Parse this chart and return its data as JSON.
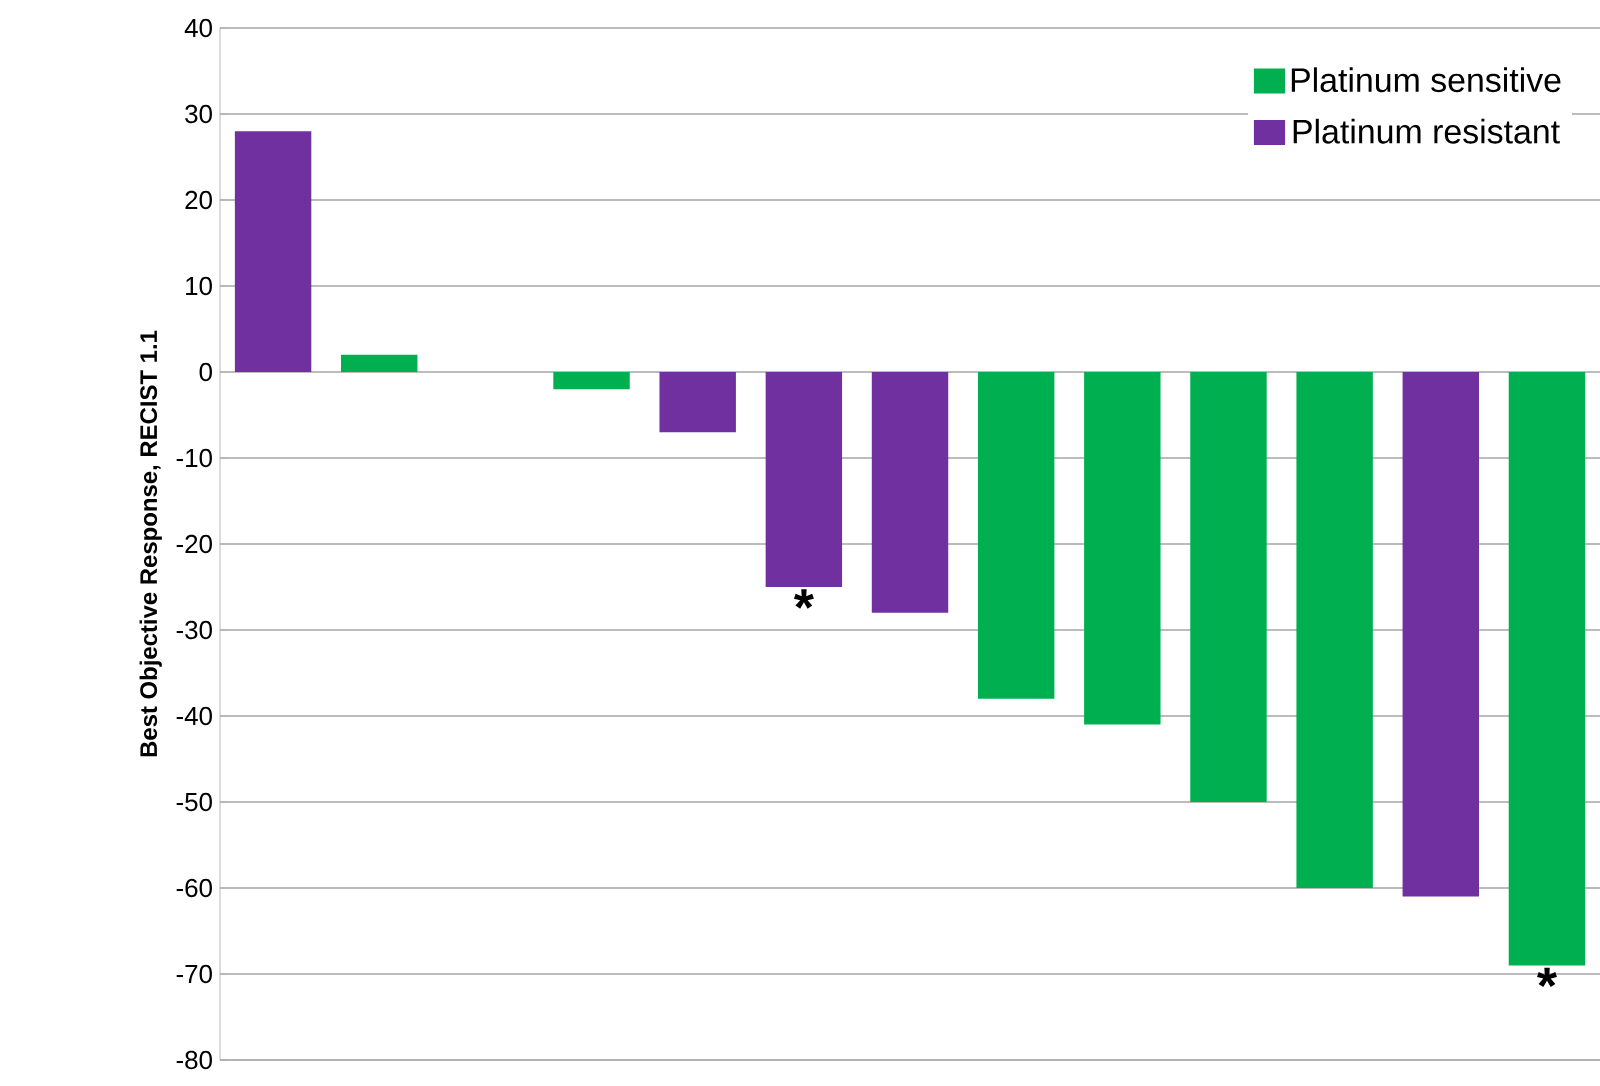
{
  "chart_data": {
    "type": "bar",
    "ylabel": "Best Objective Response, RECIST 1.1",
    "categories": [
      null,
      null,
      null,
      null,
      null,
      null,
      null,
      null,
      null,
      null,
      null,
      null,
      null
    ],
    "series": [
      {
        "name": "Platinum sensitive",
        "color": "#00b050",
        "values": [
          null,
          2,
          0,
          -2,
          null,
          null,
          null,
          -38,
          -41,
          -50,
          -60,
          null,
          -69
        ]
      },
      {
        "name": "Platinum resistant",
        "color": "#7030a0",
        "values": [
          28,
          null,
          null,
          null,
          -7,
          -25,
          -28,
          null,
          null,
          null,
          null,
          -61,
          null
        ]
      }
    ],
    "ylim": [
      -80,
      40
    ],
    "yticks": [
      -80,
      -70,
      -60,
      -50,
      -40,
      -30,
      -20,
      -10,
      0,
      10,
      20,
      30,
      40
    ],
    "grid": "y",
    "legend": "top right",
    "annotations": [
      {
        "text": "*",
        "y": -25
      },
      {
        "text": "*",
        "y": -69
      }
    ]
  }
}
